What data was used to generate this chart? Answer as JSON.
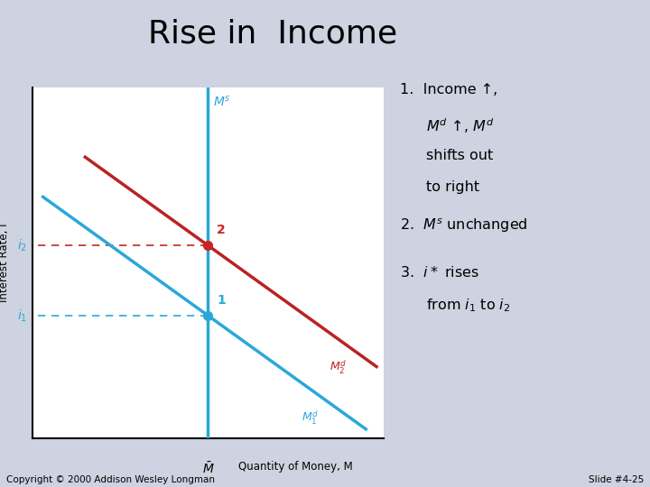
{
  "title": "Rise in  Income",
  "background_color": "#cdd3e0",
  "plot_bg_color": "#ffffff",
  "title_fontsize": 26,
  "ylabel": "Interest Rate, i",
  "xlabel": "Quantity of Money, M",
  "ms_color": "#2aa8d8",
  "md1_color": "#2aa8d8",
  "md2_color": "#bb2222",
  "dashed_color_red": "#cc2222",
  "dashed_color_blue": "#2aa8d8",
  "ms_label": "$M^s$",
  "md1_label": "$M_1^d$",
  "md2_label": "$M_2^d$",
  "mbar_label": "$\\bar{M}$",
  "i1_label": "$i_1$",
  "i2_label": "$i_2$",
  "point1_label": "1",
  "point2_label": "2",
  "ms_x": 5.0,
  "i1": 3.5,
  "i2": 5.5,
  "md_slope": -0.72,
  "xlim": [
    0,
    10
  ],
  "ylim": [
    0,
    10
  ],
  "copyright": "Copyright © 2000 Addison Wesley Longman",
  "slide": "Slide #4-25"
}
